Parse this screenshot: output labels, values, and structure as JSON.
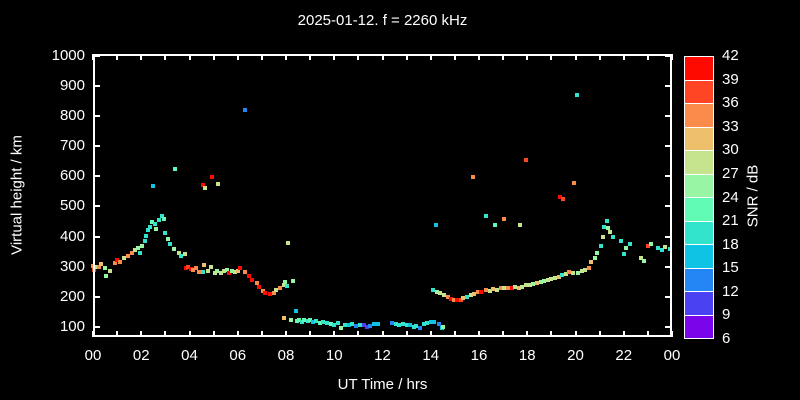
{
  "title": "2025-01-12. f = 2260 kHz",
  "axes": {
    "x_label": "UT Time / hrs",
    "y_label": "Virtual height / km",
    "x_tick_labels": [
      "00",
      "02",
      "04",
      "06",
      "08",
      "10",
      "12",
      "14",
      "16",
      "18",
      "20",
      "22",
      "00"
    ],
    "y_tick_labels": [
      "1000",
      "900",
      "800",
      "700",
      "600",
      "500",
      "400",
      "300",
      "200",
      "100"
    ]
  },
  "colorbar": {
    "label": "SNR / dB",
    "tick_labels": [
      "42",
      "39",
      "36",
      "33",
      "30",
      "27",
      "24",
      "21",
      "18",
      "15",
      "12",
      "9",
      "6"
    ],
    "colors_top_to_bottom": [
      "#ff0a00",
      "#ff4524",
      "#fb8b4b",
      "#efc06b",
      "#c6e38d",
      "#97f5a3",
      "#62fbb5",
      "#33e4cd",
      "#0fc3e5",
      "#2386f4",
      "#4a41f2",
      "#7a04ea"
    ],
    "background": "#000000",
    "foreground": "#ffffff"
  },
  "chart_data": {
    "type": "scatter",
    "title": "2025-01-12. f = 2260 kHz",
    "xlabel": "UT Time / hrs",
    "ylabel": "Virtual height / km",
    "color_label": "SNR / dB",
    "x_range": [
      0,
      24
    ],
    "y_tick_range": [
      100,
      1000
    ],
    "color_scale": {
      "min": 6,
      "max": 42,
      "step": 3
    },
    "marker": "square",
    "points_format": [
      "ut_hours",
      "virtual_height_km",
      "snr_db"
    ],
    "points": [
      [
        0.0,
        303,
        34.5
      ],
      [
        0.05,
        290,
        37.5
      ],
      [
        0.1,
        298,
        28.5
      ],
      [
        0.25,
        300,
        34.5
      ],
      [
        0.35,
        310,
        31.5
      ],
      [
        0.5,
        295,
        25.5
      ],
      [
        0.55,
        270,
        25.5
      ],
      [
        0.7,
        287,
        28.5
      ],
      [
        0.9,
        313,
        34.5
      ],
      [
        1.0,
        323,
        40.5
      ],
      [
        1.1,
        316,
        34.5
      ],
      [
        1.3,
        330,
        28.5
      ],
      [
        1.45,
        336,
        34.5
      ],
      [
        1.6,
        346,
        34.5
      ],
      [
        1.75,
        356,
        28.5
      ],
      [
        1.85,
        363,
        25.5
      ],
      [
        1.95,
        346,
        19.5
      ],
      [
        2.05,
        370,
        25.5
      ],
      [
        2.15,
        386,
        19.5
      ],
      [
        2.2,
        403,
        19.5
      ],
      [
        2.3,
        420,
        19.5
      ],
      [
        2.35,
        433,
        19.5
      ],
      [
        2.45,
        447,
        22.5
      ],
      [
        2.55,
        443,
        19.5
      ],
      [
        2.6,
        426,
        25.5
      ],
      [
        2.75,
        455,
        19.5
      ],
      [
        2.85,
        468,
        19.5
      ],
      [
        2.95,
        458,
        22.5
      ],
      [
        3.0,
        410,
        19.5
      ],
      [
        3.1,
        393,
        25.5
      ],
      [
        2.5,
        566,
        16.5
      ],
      [
        3.2,
        376,
        19.5
      ],
      [
        3.35,
        360,
        25.5
      ],
      [
        3.4,
        623,
        22.5
      ],
      [
        3.55,
        346,
        28.5
      ],
      [
        3.65,
        336,
        19.5
      ],
      [
        3.8,
        343,
        28.5
      ],
      [
        3.85,
        295,
        40.5
      ],
      [
        3.95,
        300,
        37.5
      ],
      [
        4.05,
        292,
        40.5
      ],
      [
        4.15,
        288,
        34.5
      ],
      [
        4.25,
        296,
        34.5
      ],
      [
        4.4,
        282,
        34.5
      ],
      [
        4.55,
        282,
        19.5
      ],
      [
        4.6,
        305,
        31.5
      ],
      [
        4.75,
        287,
        28.5
      ],
      [
        4.9,
        298,
        28.5
      ],
      [
        4.55,
        570,
        40.5
      ],
      [
        4.65,
        560,
        28.5
      ],
      [
        4.95,
        597,
        40.5
      ],
      [
        5.2,
        573,
        28.5
      ],
      [
        5.05,
        280,
        28.5
      ],
      [
        5.15,
        287,
        25.5
      ],
      [
        5.3,
        280,
        28.5
      ],
      [
        5.45,
        285,
        28.5
      ],
      [
        5.55,
        290,
        25.5
      ],
      [
        5.65,
        280,
        40.5
      ],
      [
        5.75,
        287,
        25.5
      ],
      [
        5.9,
        282,
        28.5
      ],
      [
        6.0,
        287,
        31.5
      ],
      [
        6.1,
        295,
        40.5
      ],
      [
        6.3,
        282,
        34.5
      ],
      [
        6.45,
        269,
        40.5
      ],
      [
        6.6,
        255,
        40.5
      ],
      [
        6.8,
        245,
        34.5
      ],
      [
        6.9,
        232,
        40.5
      ],
      [
        7.05,
        219,
        34.5
      ],
      [
        7.15,
        212,
        40.5
      ],
      [
        7.35,
        209,
        40.5
      ],
      [
        7.5,
        212,
        34.5
      ],
      [
        7.6,
        222,
        28.5
      ],
      [
        7.75,
        229,
        34.5
      ],
      [
        7.9,
        239,
        28.5
      ],
      [
        7.95,
        249,
        25.5
      ],
      [
        8.05,
        236,
        19.5
      ],
      [
        8.3,
        252,
        25.5
      ],
      [
        6.3,
        820,
        13.5
      ],
      [
        8.1,
        378,
        28.5
      ],
      [
        7.9,
        130,
        31.5
      ],
      [
        8.2,
        123,
        25.5
      ],
      [
        8.4,
        153,
        16.5
      ],
      [
        8.45,
        120,
        22.5
      ],
      [
        8.55,
        124,
        22.5
      ],
      [
        8.65,
        118,
        19.5
      ],
      [
        8.75,
        122,
        22.5
      ],
      [
        8.9,
        119,
        19.5
      ],
      [
        9.0,
        124,
        22.5
      ],
      [
        9.1,
        117,
        16.5
      ],
      [
        9.25,
        120,
        19.5
      ],
      [
        9.4,
        114,
        22.5
      ],
      [
        9.55,
        117,
        19.5
      ],
      [
        9.7,
        112,
        19.5
      ],
      [
        9.85,
        110,
        22.5
      ],
      [
        10.0,
        108,
        19.5
      ],
      [
        10.15,
        112,
        19.5
      ],
      [
        10.3,
        97,
        25.5
      ],
      [
        10.45,
        108,
        19.5
      ],
      [
        10.6,
        106,
        16.5
      ],
      [
        10.75,
        110,
        19.5
      ],
      [
        10.9,
        103,
        13.5
      ],
      [
        11.05,
        108,
        19.5
      ],
      [
        11.25,
        107,
        10.5
      ],
      [
        11.35,
        100,
        10.5
      ],
      [
        11.5,
        104,
        13.5
      ],
      [
        11.65,
        110,
        16.5
      ],
      [
        11.8,
        110,
        16.5
      ],
      [
        12.4,
        113,
        13.5
      ],
      [
        12.55,
        110,
        19.5
      ],
      [
        12.7,
        108,
        19.5
      ],
      [
        12.85,
        110,
        19.5
      ],
      [
        13.0,
        108,
        19.5
      ],
      [
        13.15,
        105,
        16.5
      ],
      [
        13.3,
        100,
        19.5
      ],
      [
        13.4,
        103,
        19.5
      ],
      [
        13.55,
        98,
        13.5
      ],
      [
        13.7,
        110,
        19.5
      ],
      [
        13.85,
        113,
        19.5
      ],
      [
        14.0,
        115,
        16.5
      ],
      [
        14.15,
        116,
        16.5
      ],
      [
        14.35,
        110,
        13.5
      ],
      [
        14.45,
        97,
        16.5
      ],
      [
        14.5,
        100,
        25.5
      ],
      [
        14.1,
        222,
        19.5
      ],
      [
        14.25,
        215,
        25.5
      ],
      [
        14.4,
        212,
        28.5
      ],
      [
        14.55,
        205,
        28.5
      ],
      [
        14.7,
        198,
        34.5
      ],
      [
        14.85,
        192,
        40.5
      ],
      [
        14.95,
        190,
        34.5
      ],
      [
        15.1,
        188,
        40.5
      ],
      [
        15.25,
        188,
        37.5
      ],
      [
        15.35,
        195,
        31.5
      ],
      [
        15.5,
        198,
        19.5
      ],
      [
        15.65,
        205,
        28.5
      ],
      [
        15.8,
        210,
        31.5
      ],
      [
        15.95,
        215,
        34.5
      ],
      [
        16.1,
        215,
        40.5
      ],
      [
        16.3,
        222,
        34.5
      ],
      [
        16.45,
        220,
        28.5
      ],
      [
        16.6,
        225,
        31.5
      ],
      [
        16.75,
        222,
        28.5
      ],
      [
        16.9,
        228,
        34.5
      ],
      [
        17.05,
        228,
        28.5
      ],
      [
        17.2,
        230,
        34.5
      ],
      [
        17.35,
        228,
        40.5
      ],
      [
        17.5,
        232,
        28.5
      ],
      [
        17.65,
        230,
        31.5
      ],
      [
        17.8,
        232,
        28.5
      ],
      [
        17.95,
        238,
        28.5
      ],
      [
        18.1,
        240,
        28.5
      ],
      [
        18.25,
        242,
        25.5
      ],
      [
        18.4,
        247,
        31.5
      ],
      [
        18.55,
        250,
        25.5
      ],
      [
        18.7,
        252,
        25.5
      ],
      [
        18.85,
        256,
        28.5
      ],
      [
        19.0,
        258,
        28.5
      ],
      [
        19.15,
        263,
        28.5
      ],
      [
        19.3,
        265,
        31.5
      ],
      [
        14.2,
        438,
        16.5
      ],
      [
        15.75,
        597,
        34.5
      ],
      [
        16.3,
        468,
        19.5
      ],
      [
        16.65,
        438,
        22.5
      ],
      [
        17.05,
        458,
        34.5
      ],
      [
        17.7,
        438,
        28.5
      ],
      [
        17.95,
        653,
        37.5
      ],
      [
        19.35,
        530,
        40.5
      ],
      [
        19.5,
        525,
        37.5
      ],
      [
        19.95,
        577,
        34.5
      ],
      [
        20.05,
        868,
        19.5
      ],
      [
        19.45,
        272,
        19.5
      ],
      [
        19.6,
        275,
        28.5
      ],
      [
        19.75,
        282,
        34.5
      ],
      [
        19.9,
        278,
        28.5
      ],
      [
        20.1,
        280,
        25.5
      ],
      [
        20.25,
        285,
        28.5
      ],
      [
        20.4,
        290,
        28.5
      ],
      [
        20.55,
        295,
        34.5
      ],
      [
        20.65,
        315,
        31.5
      ],
      [
        20.8,
        328,
        25.5
      ],
      [
        20.9,
        345,
        25.5
      ],
      [
        21.05,
        368,
        19.5
      ],
      [
        21.15,
        398,
        28.5
      ],
      [
        21.2,
        430,
        19.5
      ],
      [
        21.3,
        450,
        19.5
      ],
      [
        21.35,
        428,
        25.5
      ],
      [
        21.45,
        414,
        28.5
      ],
      [
        21.55,
        398,
        19.5
      ],
      [
        21.9,
        385,
        19.5
      ],
      [
        22.0,
        341,
        19.5
      ],
      [
        22.1,
        361,
        25.5
      ],
      [
        22.25,
        375,
        19.5
      ],
      [
        22.7,
        330,
        28.5
      ],
      [
        22.85,
        320,
        25.5
      ],
      [
        23.0,
        368,
        37.5
      ],
      [
        23.15,
        375,
        25.5
      ],
      [
        23.4,
        361,
        19.5
      ],
      [
        23.6,
        355,
        19.5
      ],
      [
        23.7,
        365,
        28.5
      ],
      [
        23.9,
        358,
        19.5
      ]
    ]
  }
}
